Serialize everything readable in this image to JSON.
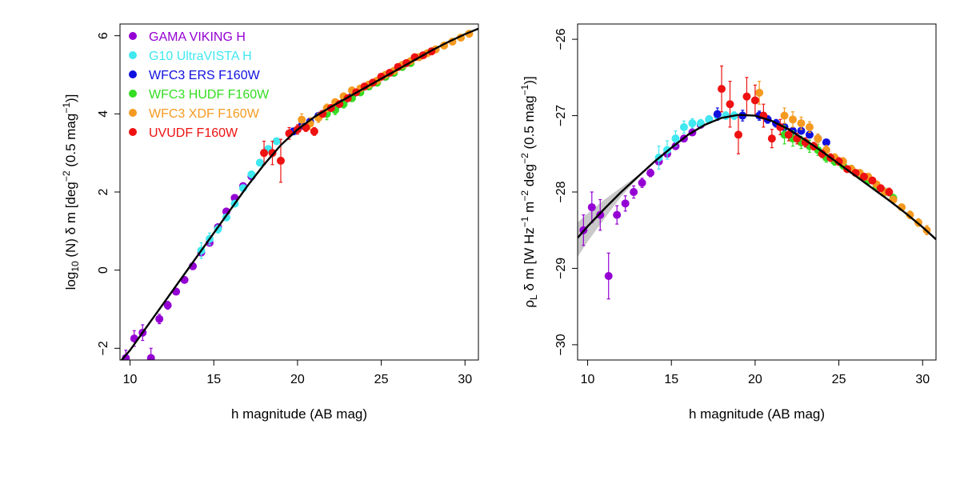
{
  "figure_title": "",
  "colors": {
    "GAMA VIKING H": "#9400D3",
    "G10 UltraVISTA H": "#40E8F0",
    "WFC3 ERS F160W": "#1010E0",
    "WFC3 HUDF F160W": "#33DD22",
    "WFC3 XDF F160W": "#F59A20",
    "UVUDF F160W": "#EE1111",
    "fit": "#000000",
    "fit_band": "#888888"
  },
  "chart_data": [
    {
      "type": "scatter",
      "panel": "left",
      "title": "",
      "xlabel": "h magnitude (AB mag)",
      "ylabel": "log10 (N) δ m [deg−2 (0.5 mag−1)]",
      "ylabel_parts": {
        "a": "log",
        "sub": "10",
        "b": " (N) δ m [deg",
        "sup1": "−2",
        "c": " (0.5 mag",
        "sup2": "−1",
        "d": ")]"
      },
      "xlim": [
        9.4,
        30.8
      ],
      "ylim": [
        -2.3,
        6.3
      ],
      "xticks": [
        10,
        15,
        20,
        25,
        30
      ],
      "yticks": [
        -2,
        0,
        2,
        4,
        6
      ],
      "grid": false,
      "legend_position": "top-left",
      "series": [
        {
          "name": "GAMA VIKING H",
          "x": [
            9.75,
            10.25,
            10.75,
            11.25,
            11.75,
            12.25,
            12.75,
            13.25,
            13.75,
            14.25,
            14.75,
            15.25,
            15.75,
            16.25,
            16.75,
            17.25
          ],
          "y": [
            -2.25,
            -1.75,
            -1.6,
            -2.25,
            -1.25,
            -0.9,
            -0.55,
            -0.25,
            0.1,
            0.45,
            0.7,
            1.1,
            1.5,
            1.85,
            2.15,
            2.4
          ],
          "yerr": [
            0.2,
            0.2,
            0.2,
            0.25,
            0.12,
            0.1,
            0.08,
            0.06,
            0.05,
            0.04,
            0.04,
            0.03,
            0.03,
            0.03,
            0.03,
            0.03
          ]
        },
        {
          "name": "G10 UltraVISTA H",
          "x": [
            14.25,
            14.75,
            15.25,
            15.75,
            16.25,
            16.75,
            17.25,
            17.75,
            18.25,
            18.75
          ],
          "y": [
            0.5,
            0.8,
            1.05,
            1.35,
            1.7,
            2.1,
            2.45,
            2.75,
            3.1,
            3.3
          ],
          "yerr": [
            0.2,
            0.15,
            0.1,
            0.08,
            0.06,
            0.05,
            0.05,
            0.05,
            0.05,
            0.05
          ]
        },
        {
          "name": "WFC3 ERS F160W",
          "x": [
            19.75,
            20.25,
            20.75,
            21.25,
            21.75,
            22.25,
            22.75,
            23.25,
            23.75,
            24.25,
            24.75,
            25.25,
            25.75
          ],
          "y": [
            3.55,
            3.7,
            3.8,
            3.95,
            4.05,
            4.15,
            4.3,
            4.45,
            4.6,
            4.7,
            4.82,
            4.95,
            5.05
          ],
          "yerr": [
            0.08,
            0.07,
            0.06,
            0.05,
            0.04,
            0.04,
            0.04,
            0.03,
            0.03,
            0.03,
            0.03,
            0.03,
            0.03
          ]
        },
        {
          "name": "WFC3 HUDF F160W",
          "x": [
            21.75,
            22.25,
            22.75,
            23.25,
            23.75,
            24.25,
            24.75,
            25.25,
            25.75,
            26.25,
            26.75,
            27.25,
            27.75
          ],
          "y": [
            4.0,
            4.1,
            4.25,
            4.4,
            4.55,
            4.7,
            4.8,
            4.95,
            5.05,
            5.2,
            5.3,
            5.45,
            5.55
          ],
          "yerr": [
            0.15,
            0.12,
            0.1,
            0.08,
            0.07,
            0.06,
            0.05,
            0.05,
            0.05,
            0.05,
            0.05,
            0.05,
            0.05
          ]
        },
        {
          "name": "WFC3 XDF F160W",
          "x": [
            20.25,
            20.75,
            21.25,
            21.75,
            22.25,
            22.75,
            23.25,
            23.75,
            24.25,
            24.75,
            25.25,
            25.75,
            26.25,
            26.75,
            27.25,
            27.75,
            28.25,
            28.75,
            29.25,
            29.75,
            30.25
          ],
          "y": [
            3.85,
            3.75,
            3.9,
            4.15,
            4.3,
            4.45,
            4.6,
            4.65,
            4.75,
            4.85,
            5.0,
            5.1,
            5.25,
            5.35,
            5.45,
            5.55,
            5.65,
            5.75,
            5.85,
            5.95,
            6.05
          ],
          "yerr": [
            0.15,
            0.15,
            0.12,
            0.1,
            0.08,
            0.07,
            0.06,
            0.05,
            0.05,
            0.05,
            0.04,
            0.04,
            0.04,
            0.04,
            0.04,
            0.04,
            0.04,
            0.05,
            0.05,
            0.06,
            0.07
          ]
        },
        {
          "name": "UVUDF F160W",
          "x": [
            18.0,
            18.5,
            19.0,
            19.5,
            20.0,
            20.5,
            21.0,
            21.5,
            22.0,
            22.5,
            23.0,
            23.5,
            24.0,
            24.5,
            25.0,
            25.5,
            26.0,
            26.5,
            27.0,
            27.5,
            28.0
          ],
          "y": [
            3.0,
            3.0,
            2.8,
            3.5,
            3.6,
            3.65,
            3.55,
            4.0,
            4.15,
            4.25,
            4.4,
            4.55,
            4.7,
            4.8,
            4.95,
            5.05,
            5.2,
            5.3,
            5.45,
            5.5,
            5.6
          ],
          "yerr": [
            0.3,
            0.3,
            0.55,
            0.15,
            0.12,
            0.1,
            0.1,
            0.08,
            0.07,
            0.06,
            0.05,
            0.05,
            0.05,
            0.05,
            0.04,
            0.04,
            0.04,
            0.04,
            0.04,
            0.04,
            0.05
          ]
        }
      ],
      "fit_line": {
        "x": [
          9.4,
          10,
          11,
          12,
          13,
          14,
          15,
          16,
          17,
          18,
          19,
          20,
          21,
          22,
          23,
          24,
          25,
          26,
          27,
          28,
          29,
          30,
          30.8
        ],
        "y": [
          -2.35,
          -2.05,
          -1.45,
          -0.85,
          -0.25,
          0.35,
          0.95,
          1.55,
          2.15,
          2.7,
          3.2,
          3.6,
          3.92,
          4.18,
          4.42,
          4.66,
          4.9,
          5.14,
          5.38,
          5.62,
          5.84,
          6.04,
          6.18
        ]
      }
    },
    {
      "type": "scatter",
      "panel": "right",
      "title": "",
      "xlabel": "h magnitude (AB mag)",
      "ylabel": "ρL δ m [W Hz−1 m−2 deg−2 (0.5 mag−1)]",
      "ylabel_parts": {
        "rho": "ρ",
        "subL": "L",
        "a": " δ m [W Hz",
        "sup1": "−1",
        "b": " m",
        "sup2": "−2",
        "c": " deg",
        "sup3": "−2",
        "d": " (0.5 mag",
        "sup4": "−1",
        "e": ")]"
      },
      "xlim": [
        9.4,
        30.8
      ],
      "ylim": [
        -30.2,
        -25.8
      ],
      "xticks": [
        10,
        15,
        20,
        25,
        30
      ],
      "yticks": [
        -30,
        -29,
        -28,
        -27,
        -26
      ],
      "grid": false,
      "series": [
        {
          "name": "GAMA VIKING H",
          "x": [
            9.75,
            10.25,
            10.75,
            11.25,
            11.75,
            12.25,
            12.75,
            13.25,
            13.75,
            14.25,
            14.75,
            15.25,
            15.75,
            16.25,
            16.75,
            17.25
          ],
          "y": [
            -28.5,
            -28.2,
            -28.3,
            -29.1,
            -28.3,
            -28.15,
            -28.0,
            -27.88,
            -27.75,
            -27.6,
            -27.5,
            -27.4,
            -27.3,
            -27.22,
            -27.12,
            -27.05
          ],
          "yerr": [
            0.2,
            0.2,
            0.2,
            0.3,
            0.12,
            0.1,
            0.08,
            0.06,
            0.05,
            0.04,
            0.04,
            0.03,
            0.03,
            0.03,
            0.03,
            0.03
          ]
        },
        {
          "name": "G10 UltraVISTA H",
          "x": [
            14.25,
            14.75,
            15.25,
            15.75,
            16.25,
            16.75,
            17.25,
            17.75,
            18.25,
            18.75
          ],
          "y": [
            -27.55,
            -27.45,
            -27.3,
            -27.15,
            -27.1,
            -27.1,
            -27.05,
            -27.0,
            -27.0,
            -27.0
          ],
          "yerr": [
            0.15,
            0.12,
            0.1,
            0.08,
            0.06,
            0.05,
            0.05,
            0.05,
            0.05,
            0.05
          ]
        },
        {
          "name": "WFC3 ERS F160W",
          "x": [
            17.75,
            19.25,
            20.25,
            20.75,
            21.25,
            21.75,
            22.25,
            22.75,
            23.25,
            23.75,
            24.25
          ],
          "y": [
            -26.98,
            -27.0,
            -27.0,
            -27.05,
            -27.1,
            -27.15,
            -27.2,
            -27.2,
            -27.25,
            -27.3,
            -27.35
          ],
          "yerr": [
            0.08,
            0.07,
            0.06,
            0.05,
            0.05,
            0.05,
            0.04,
            0.04,
            0.04,
            0.04,
            0.04
          ]
        },
        {
          "name": "WFC3 HUDF F160W",
          "x": [
            21.75,
            22.25,
            22.75,
            23.25,
            23.75,
            24.25,
            24.75,
            25.25,
            25.75,
            26.25,
            26.75,
            27.25,
            27.75,
            28.25
          ],
          "y": [
            -27.25,
            -27.3,
            -27.35,
            -27.4,
            -27.45,
            -27.55,
            -27.6,
            -27.65,
            -27.7,
            -27.78,
            -27.85,
            -27.92,
            -28.0,
            -28.08
          ],
          "yerr": [
            0.12,
            0.1,
            0.08,
            0.08,
            0.07,
            0.06,
            0.05,
            0.05,
            0.05,
            0.05,
            0.05,
            0.05,
            0.05,
            0.05
          ]
        },
        {
          "name": "WFC3 XDF F160W",
          "x": [
            20.25,
            21.75,
            22.25,
            22.75,
            23.25,
            23.75,
            24.25,
            24.75,
            25.25,
            25.75,
            26.25,
            26.75,
            27.25,
            27.75,
            28.25,
            28.75,
            29.25,
            29.75,
            30.25
          ],
          "y": [
            -26.7,
            -27.0,
            -27.05,
            -27.1,
            -27.15,
            -27.3,
            -27.45,
            -27.55,
            -27.6,
            -27.7,
            -27.75,
            -27.8,
            -27.9,
            -28.0,
            -28.1,
            -28.2,
            -28.3,
            -28.4,
            -28.5
          ],
          "yerr": [
            0.15,
            0.1,
            0.1,
            0.08,
            0.07,
            0.06,
            0.06,
            0.05,
            0.05,
            0.05,
            0.04,
            0.04,
            0.04,
            0.04,
            0.04,
            0.04,
            0.05,
            0.05,
            0.06
          ]
        },
        {
          "name": "UVUDF F160W",
          "x": [
            18.0,
            18.5,
            19.0,
            19.5,
            20.0,
            20.5,
            21.0,
            21.5,
            22.0,
            22.5,
            23.0,
            23.5,
            24.0,
            24.5,
            25.0,
            25.5,
            26.0,
            26.5,
            27.0,
            27.5,
            28.0
          ],
          "y": [
            -26.65,
            -26.85,
            -27.25,
            -26.75,
            -26.8,
            -27.0,
            -27.3,
            -27.15,
            -27.25,
            -27.3,
            -27.35,
            -27.4,
            -27.5,
            -27.55,
            -27.6,
            -27.7,
            -27.75,
            -27.8,
            -27.85,
            -27.95,
            -28.0
          ],
          "yerr": [
            0.3,
            0.3,
            0.25,
            0.25,
            0.2,
            0.15,
            0.12,
            0.1,
            0.08,
            0.07,
            0.06,
            0.05,
            0.05,
            0.05,
            0.05,
            0.04,
            0.04,
            0.04,
            0.04,
            0.04,
            0.05
          ]
        }
      ],
      "fit_line": {
        "x": [
          9.4,
          10,
          11,
          12,
          13,
          14,
          15,
          16,
          17,
          18,
          19,
          20,
          21,
          22,
          23,
          24,
          25,
          26,
          27,
          28,
          29,
          30,
          30.8
        ],
        "y": [
          -28.6,
          -28.45,
          -28.22,
          -28.0,
          -27.8,
          -27.6,
          -27.42,
          -27.25,
          -27.12,
          -27.03,
          -26.99,
          -27.0,
          -27.07,
          -27.18,
          -27.32,
          -27.47,
          -27.63,
          -27.79,
          -27.95,
          -28.11,
          -28.28,
          -28.46,
          -28.62
        ]
      },
      "fit_band": {
        "x": [
          9.4,
          10,
          11,
          12,
          13
        ],
        "y_low": [
          -28.85,
          -28.65,
          -28.35,
          -28.06,
          -27.82
        ],
        "y_high": [
          -28.4,
          -28.28,
          -28.1,
          -27.94,
          -27.78
        ]
      }
    }
  ]
}
